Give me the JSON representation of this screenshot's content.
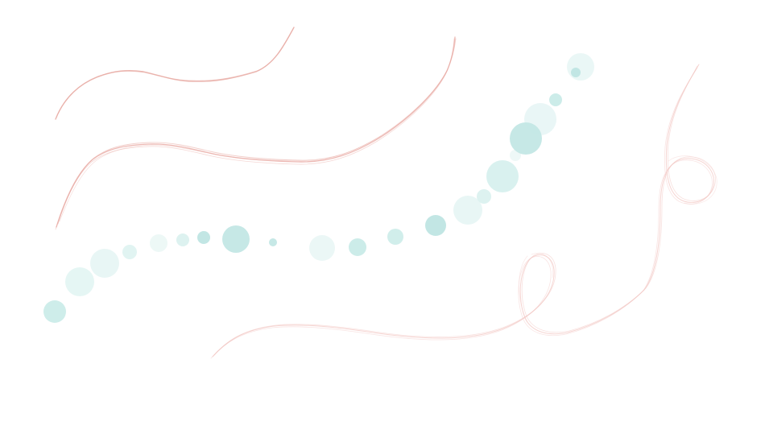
{
  "colors": {
    "background": "#ffffff",
    "pencil_stroke": "#e8a9a2",
    "ribbon_stroke": "#f2c4c0",
    "dot_strong": "#bfe5e3",
    "dot_light": "#e6f5f3"
  },
  "drawing": {
    "elements": [
      "pencil-curve",
      "pencil-wave",
      "dot-trail",
      "ribbon-loop-curve"
    ]
  }
}
